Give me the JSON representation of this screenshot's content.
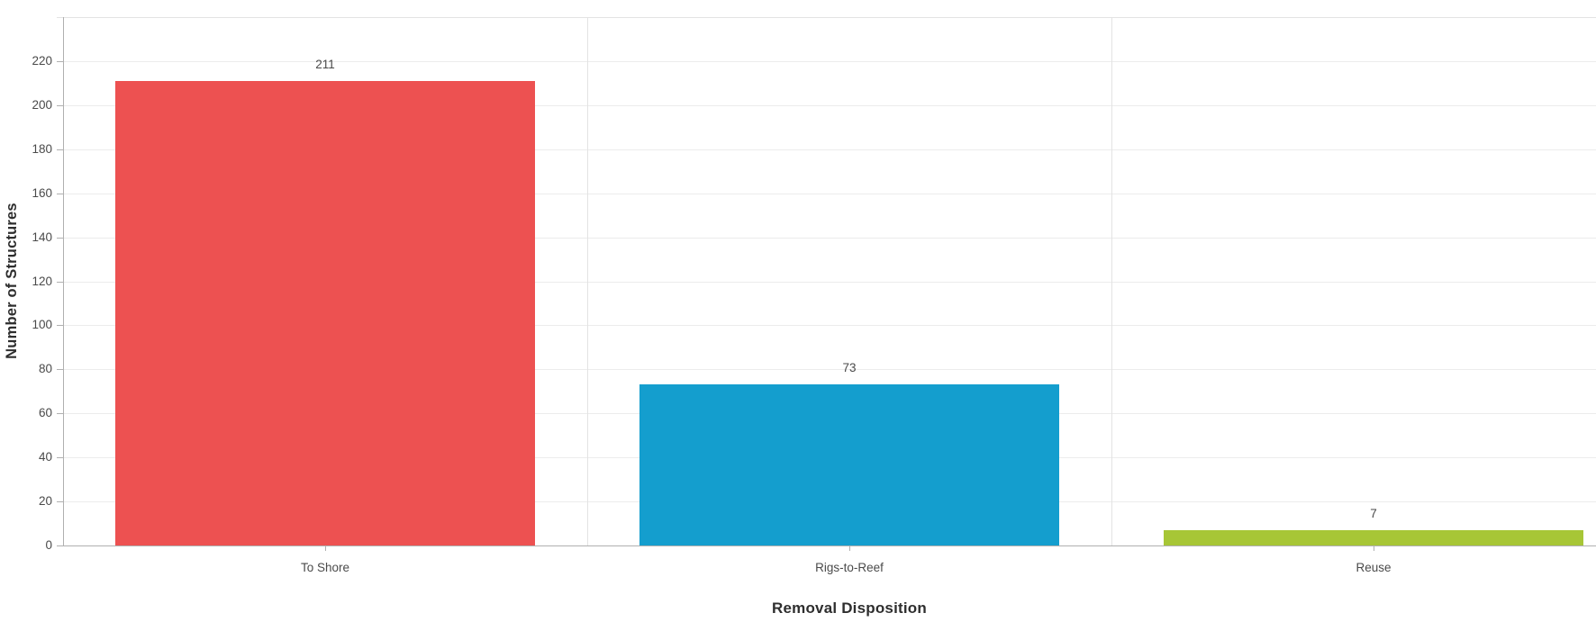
{
  "chart_data": {
    "type": "bar",
    "categories": [
      "To Shore",
      "Rigs-to-Reef",
      "Reuse"
    ],
    "values": [
      211,
      73,
      7
    ],
    "value_labels": [
      "211",
      "73",
      "7"
    ],
    "bar_colors": [
      "#ed5151",
      "#149ece",
      "#a7c636"
    ],
    "title": "",
    "xlabel": "Removal Disposition",
    "ylabel": "Number of Structures",
    "ylim": [
      0,
      240
    ],
    "yticks": [
      0,
      20,
      40,
      60,
      80,
      100,
      120,
      140,
      160,
      180,
      200,
      220
    ],
    "grid": true,
    "legend_position": "none",
    "bar_width_fraction": 0.8
  },
  "colors": {
    "background": "#ffffff",
    "gridline": "#ececec",
    "panel_border": "#e3e3e3",
    "axis_line": "#b0b0b0",
    "tick_label": "#4a4a4a",
    "value_label": "#4a4a4a",
    "axis_title": "#2e2e2e"
  }
}
